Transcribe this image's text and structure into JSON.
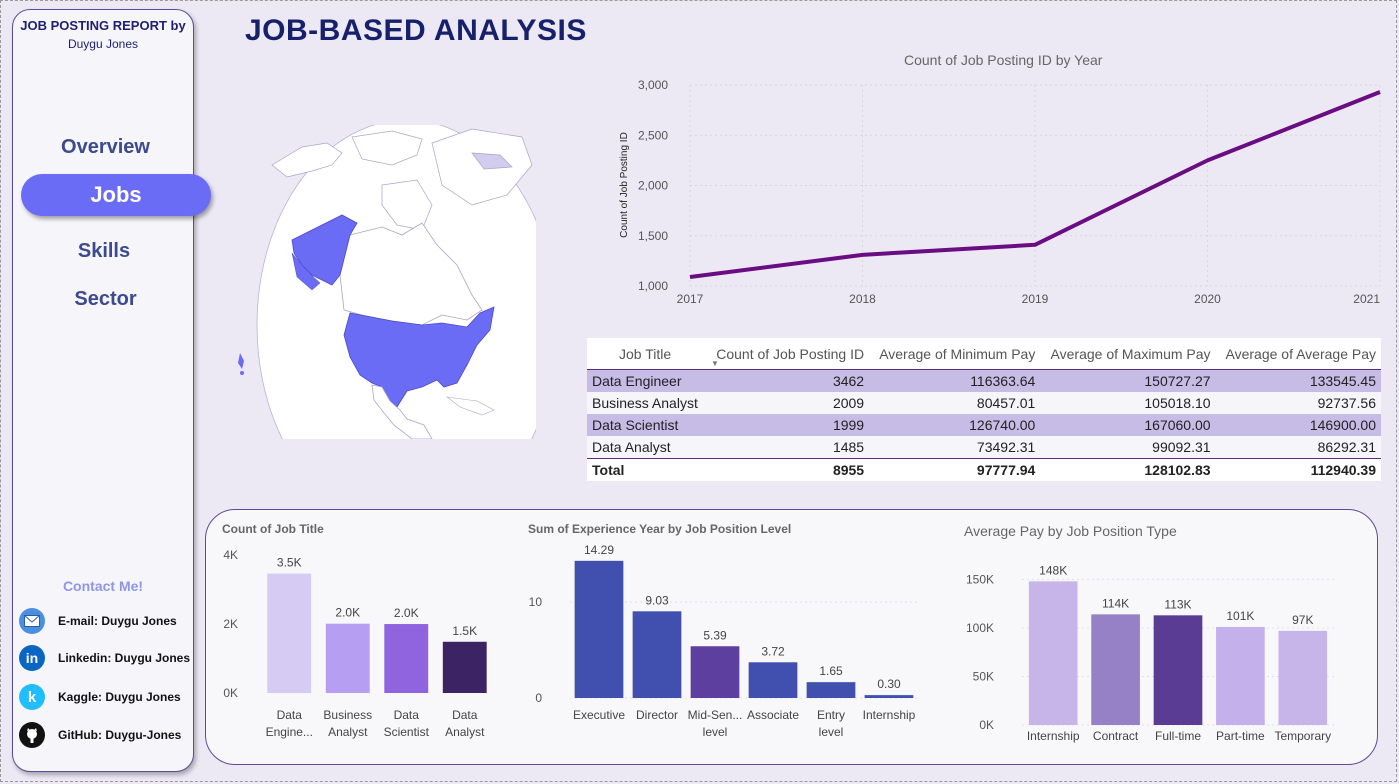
{
  "sidebar": {
    "report_title": "JOB POSTING REPORT by",
    "author": "Duygu Jones",
    "nav": [
      "Overview",
      "Jobs",
      "Skills",
      "Sector"
    ],
    "active": "Jobs",
    "contact_title": "Contact Me!",
    "contacts": [
      {
        "label": "E-mail: Duygu Jones",
        "icon": "email-icon"
      },
      {
        "label": "Linkedin: Duygu Jones",
        "icon": "linkedin-icon"
      },
      {
        "label": "Kaggle: Duygu Jones",
        "icon": "kaggle-icon"
      },
      {
        "label": "GitHub: Duygu-Jones",
        "icon": "github-icon"
      }
    ]
  },
  "page_title": "JOB-BASED ANALYSIS",
  "colors": {
    "accent": "#6b6cf5",
    "line": "#6a0d83",
    "map_fill": "#6b6cf5"
  },
  "line_chart": {
    "title": "Count of Job Posting ID by Year",
    "ylabel": "Count of Job Posting ID",
    "yticks": [
      "1,000",
      "1,500",
      "2,000",
      "2,500",
      "3,000"
    ],
    "xticks": [
      "2017",
      "2018",
      "2019",
      "2020",
      "2021"
    ]
  },
  "table": {
    "headers": [
      "Job Title",
      "Count of Job Posting ID",
      "Average of Minimum Pay",
      "Average of Maximum Pay",
      "Average of Average Pay"
    ],
    "rows": [
      [
        "Data Engineer",
        "3462",
        "116363.64",
        "150727.27",
        "133545.45"
      ],
      [
        "Business Analyst",
        "2009",
        "80457.01",
        "105018.10",
        "92737.56"
      ],
      [
        "Data Scientist",
        "1999",
        "126740.00",
        "167060.00",
        "146900.00"
      ],
      [
        "Data Analyst",
        "1485",
        "73492.31",
        "99092.31",
        "86292.31"
      ]
    ],
    "total": [
      "Total",
      "8955",
      "97777.94",
      "128102.83",
      "112940.39"
    ]
  },
  "bar1": {
    "title": "Count of Job Title",
    "yticks": [
      "0K",
      "2K",
      "4K"
    ],
    "labels": [
      "3.5K",
      "2.0K",
      "2.0K",
      "1.5K"
    ],
    "cats": [
      [
        "Data",
        "Engine..."
      ],
      [
        "Business",
        "Analyst"
      ],
      [
        "Data",
        "Scientist"
      ],
      [
        "Data",
        "Analyst"
      ]
    ]
  },
  "bar2": {
    "title": "Sum of Experience Year by Job Position Level",
    "yticks": [
      "0",
      "10"
    ],
    "labels": [
      "14.29",
      "9.03",
      "5.39",
      "3.72",
      "1.65",
      "0.30"
    ],
    "cats": [
      [
        "Executive"
      ],
      [
        "Director"
      ],
      [
        "Mid-Sen...",
        "level"
      ],
      [
        "Associate"
      ],
      [
        "Entry",
        "level"
      ],
      [
        "Internship"
      ]
    ]
  },
  "bar3": {
    "title": "Average Pay by Job Position Type",
    "yticks": [
      "0K",
      "50K",
      "100K",
      "150K"
    ],
    "labels": [
      "148K",
      "114K",
      "113K",
      "101K",
      "97K"
    ],
    "cats": [
      [
        "Internship"
      ],
      [
        "Contract"
      ],
      [
        "Full-time"
      ],
      [
        "Part-time"
      ],
      [
        "Temporary"
      ]
    ]
  },
  "chart_data": [
    {
      "type": "line",
      "title": "Count of Job Posting ID by Year",
      "ylabel": "Count of Job Posting ID",
      "x": [
        2017,
        2018,
        2019,
        2020,
        2021
      ],
      "y": [
        1090,
        1310,
        1410,
        2250,
        2930
      ],
      "ylim": [
        1000,
        3000
      ],
      "grid": true
    },
    {
      "type": "bar",
      "title": "Count of Job Title",
      "categories": [
        "Data Engineer",
        "Business Analyst",
        "Data Scientist",
        "Data Analyst"
      ],
      "values": [
        3462,
        2009,
        1999,
        1485
      ],
      "colors": [
        "#d6cbf2",
        "#b69ef2",
        "#9063df",
        "#3b2364"
      ],
      "ylim": [
        0,
        4000
      ]
    },
    {
      "type": "bar",
      "title": "Sum of Experience Year by Job Position Level",
      "categories": [
        "Executive",
        "Director",
        "Mid-Senior level",
        "Associate",
        "Entry level",
        "Internship"
      ],
      "values": [
        14.29,
        9.03,
        5.39,
        3.72,
        1.65,
        0.3
      ],
      "colors": [
        "#4150ae",
        "#4150ae",
        "#5c3f9e",
        "#4150ae",
        "#4150ae",
        "#4150ae"
      ],
      "ylim": [
        0,
        15
      ]
    },
    {
      "type": "bar",
      "title": "Average Pay by Job Position Type",
      "categories": [
        "Internship",
        "Contract",
        "Full-time",
        "Part-time",
        "Temporary"
      ],
      "values": [
        148000,
        114000,
        113000,
        101000,
        97000
      ],
      "colors": [
        "#c7b5ea",
        "#9781c6",
        "#5b3c95",
        "#c4b0ea",
        "#c7b5ea"
      ],
      "ylim": [
        0,
        170000
      ]
    }
  ]
}
